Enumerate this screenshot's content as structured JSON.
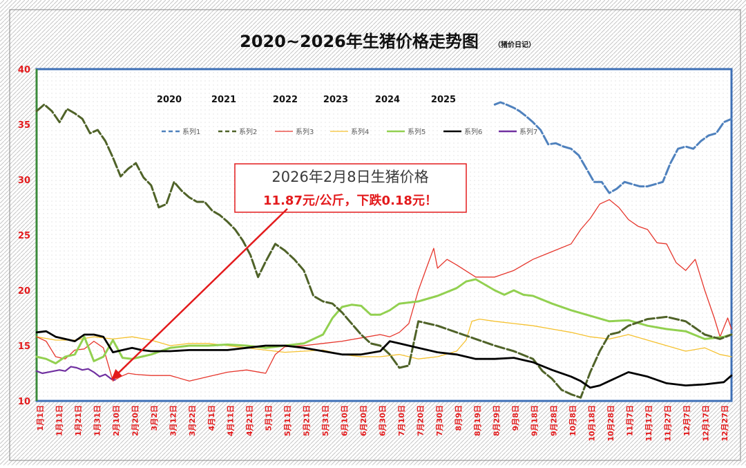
{
  "chart_data": {
    "type": "line",
    "title": "2020~2026年生猪价格走势图",
    "title_note": "（猪价日记）",
    "xlabel": "",
    "ylabel": "",
    "ylim": [
      10,
      40
    ],
    "y_ticks": [
      "10",
      "15",
      "20",
      "25",
      "30",
      "35",
      "40"
    ],
    "x_ticks": [
      "1月1日",
      "1月11日",
      "1月21日",
      "1月31日",
      "2月10日",
      "2月20日",
      "3月2日",
      "3月12日",
      "3月22日",
      "4月1日",
      "4月11日",
      "4月21日",
      "5月1日",
      "5月11日",
      "5月21日",
      "5月31日",
      "6月10日",
      "6月20日",
      "6月30日",
      "7月10日",
      "7月20日",
      "7月30日",
      "8月9日",
      "8月19日",
      "8月29日",
      "9月8日",
      "9月18日",
      "9月28日",
      "10月8日",
      "10月18日",
      "10月28日",
      "11月7日",
      "11月17日",
      "11月27日",
      "12月7日",
      "12月17日",
      "12月27日"
    ],
    "year_labels": [
      "2020",
      "2021",
      "2022",
      "2023",
      "2024",
      "2025"
    ],
    "grid": false,
    "legend_position": "top",
    "series": [
      {
        "name": "系列1",
        "color": "#4f81bd",
        "style": "dashed",
        "x": [
          240,
          243,
          246,
          250,
          253,
          256,
          260,
          264,
          268,
          272,
          276,
          280,
          284,
          288,
          292,
          296,
          300,
          304,
          308,
          312,
          316,
          320,
          324,
          328,
          332,
          336,
          340,
          344,
          348,
          352,
          356,
          360,
          364
        ],
        "values": [
          36.8,
          37,
          36.8,
          36.5,
          36.2,
          35.8,
          35.2,
          34.5,
          33.2,
          33.3,
          33,
          32.8,
          32.2,
          31,
          29.8,
          29.8,
          28.8,
          29.2,
          29.8,
          29.6,
          29.4,
          29.4,
          29.6,
          29.8,
          31.5,
          32.8,
          33,
          32.8,
          33.5,
          34,
          34.2,
          35.2,
          35.5
        ]
      },
      {
        "name": "系列2",
        "color": "#4f6228",
        "style": "dashed",
        "x": [
          0,
          4,
          8,
          12,
          16,
          20,
          24,
          28,
          32,
          36,
          40,
          44,
          48,
          52,
          56,
          60,
          64,
          68,
          72,
          76,
          80,
          84,
          88,
          92,
          96,
          100,
          104,
          108,
          112,
          116,
          120,
          125,
          130,
          135,
          140,
          145,
          150,
          155,
          160,
          165,
          170,
          175,
          180,
          185,
          190,
          195,
          200,
          210,
          220,
          230,
          240,
          250,
          260,
          265,
          270,
          275,
          280,
          285,
          290,
          295,
          300,
          305,
          310,
          320,
          330,
          340,
          350,
          358,
          364
        ],
        "values": [
          36.2,
          36.8,
          36.2,
          35.2,
          36.4,
          36,
          35.5,
          34.2,
          34.5,
          33.5,
          32,
          30.3,
          31,
          31.5,
          30.2,
          29.5,
          27.5,
          27.8,
          29.8,
          29,
          28.4,
          28,
          28,
          27.2,
          26.8,
          26.2,
          25.5,
          24.5,
          23.2,
          21.2,
          22.6,
          24.2,
          23.6,
          22.8,
          21.8,
          19.5,
          19,
          18.8,
          18,
          17,
          16,
          15.2,
          15,
          14.2,
          13,
          13.2,
          17.2,
          16.8,
          16.2,
          15.6,
          15,
          14.5,
          13.8,
          12.7,
          12,
          11,
          10.6,
          10.3,
          12.6,
          14.5,
          16,
          16.2,
          16.8,
          17.4,
          17.6,
          17.2,
          16,
          15.6,
          16
        ]
      },
      {
        "name": "系列3",
        "color": "#e6352b",
        "style": "solid",
        "x": [
          0,
          5,
          10,
          15,
          20,
          25,
          30,
          35,
          40,
          44,
          48,
          52,
          60,
          70,
          80,
          90,
          100,
          110,
          120,
          125,
          130,
          140,
          150,
          160,
          170,
          180,
          185,
          190,
          195,
          200,
          205,
          208,
          210,
          215,
          220,
          230,
          240,
          250,
          260,
          270,
          280,
          285,
          290,
          295,
          300,
          305,
          310,
          315,
          320,
          325,
          330,
          335,
          340,
          345,
          350,
          355,
          358,
          362,
          364
        ],
        "values": [
          15.8,
          15.4,
          14,
          13.8,
          14.6,
          14.7,
          15.4,
          14.8,
          11.8,
          12.2,
          12.5,
          12.4,
          12.3,
          12.3,
          11.8,
          12.2,
          12.6,
          12.8,
          12.5,
          14.2,
          14.9,
          15,
          15.2,
          15.4,
          15.7,
          16,
          15.8,
          16.2,
          17,
          20,
          22.4,
          23.8,
          22,
          22.8,
          22.3,
          21.2,
          21.2,
          21.8,
          22.8,
          23.5,
          24.2,
          25.5,
          26.5,
          27.8,
          28.2,
          27.5,
          26.4,
          25.8,
          25.5,
          24.3,
          24.2,
          22.5,
          21.8,
          22.8,
          20,
          17.5,
          15.8,
          17.5,
          16.5
        ]
      },
      {
        "name": "系列4",
        "color": "#f5c12e",
        "style": "solid",
        "x": [
          0,
          10,
          20,
          30,
          40,
          50,
          60,
          70,
          80,
          90,
          100,
          110,
          120,
          130,
          140,
          150,
          160,
          170,
          180,
          190,
          200,
          210,
          220,
          225,
          228,
          232,
          240,
          250,
          260,
          270,
          280,
          290,
          300,
          310,
          320,
          330,
          340,
          350,
          358,
          364
        ],
        "values": [
          15.8,
          15.5,
          15.5,
          15.8,
          15.6,
          15.8,
          15.5,
          15,
          15.2,
          15.2,
          15,
          14.8,
          14.6,
          14.4,
          14.5,
          14.6,
          14.2,
          14,
          14,
          14.2,
          13.8,
          14,
          14.5,
          15.5,
          17.2,
          17.4,
          17.2,
          17,
          16.8,
          16.5,
          16.2,
          15.8,
          15.6,
          16,
          15.5,
          15,
          14.5,
          14.8,
          14.2,
          14
        ]
      },
      {
        "name": "系列5",
        "color": "#92d050",
        "style": "solid",
        "x": [
          0,
          5,
          10,
          15,
          20,
          25,
          30,
          35,
          40,
          45,
          50,
          55,
          60,
          70,
          80,
          90,
          100,
          110,
          120,
          130,
          140,
          150,
          155,
          160,
          165,
          170,
          175,
          180,
          185,
          190,
          200,
          210,
          220,
          225,
          230,
          235,
          240,
          245,
          250,
          255,
          260,
          270,
          280,
          290,
          300,
          310,
          320,
          330,
          340,
          350,
          360,
          364
        ],
        "values": [
          14,
          13.8,
          13.4,
          14,
          14.2,
          15.8,
          13.6,
          14,
          15.5,
          13.9,
          13.8,
          14,
          14.2,
          14.8,
          15,
          15,
          15.1,
          15,
          14.8,
          15,
          15.2,
          16,
          17.5,
          18.5,
          18.7,
          18.6,
          17.8,
          17.8,
          18.2,
          18.8,
          19,
          19.5,
          20.2,
          20.8,
          21,
          20.5,
          20,
          19.6,
          20,
          19.6,
          19.5,
          18.8,
          18.2,
          17.7,
          17.2,
          17.3,
          16.8,
          16.5,
          16.3,
          15.6,
          15.8,
          16
        ]
      },
      {
        "name": "系列6",
        "color": "#000000",
        "style": "solid",
        "x": [
          0,
          5,
          10,
          15,
          20,
          25,
          30,
          35,
          40,
          45,
          50,
          55,
          60,
          70,
          80,
          90,
          100,
          110,
          120,
          130,
          140,
          150,
          160,
          170,
          180,
          185,
          190,
          200,
          210,
          220,
          230,
          240,
          250,
          260,
          270,
          280,
          285,
          290,
          295,
          300,
          310,
          320,
          330,
          340,
          350,
          360,
          364
        ],
        "values": [
          16.2,
          16.3,
          15.8,
          15.6,
          15.4,
          16,
          16,
          15.8,
          14.4,
          14.6,
          14.8,
          14.6,
          14.5,
          14.5,
          14.6,
          14.6,
          14.6,
          14.8,
          15,
          15,
          14.8,
          14.5,
          14.2,
          14.2,
          14.5,
          15.4,
          15.2,
          14.8,
          14.4,
          14.2,
          13.8,
          13.8,
          13.9,
          13.5,
          12.8,
          12.2,
          11.8,
          11.2,
          11.4,
          11.8,
          12.6,
          12.2,
          11.6,
          11.4,
          11.5,
          11.7,
          12.3
        ]
      },
      {
        "name": "系列7",
        "color": "#7030a0",
        "style": "solid",
        "x": [
          0,
          3,
          6,
          9,
          12,
          15,
          18,
          21,
          24,
          27,
          30,
          33,
          36,
          39,
          41
        ],
        "values": [
          12.7,
          12.5,
          12.6,
          12.7,
          12.8,
          12.7,
          13.1,
          13,
          12.8,
          12.9,
          12.6,
          12.2,
          12.4,
          12,
          11.9
        ]
      }
    ],
    "annotations": [
      {
        "line1": "2026年2月8日生猪价格",
        "line2": "11.87元/公斤，下跌0.18元！",
        "points_to": {
          "x": 39,
          "y": 11.87
        }
      }
    ]
  },
  "colors": {
    "y_tick": "#e31a1c",
    "x_tick": "#e31a1c",
    "plot_border": "#3d6fb6",
    "left_axis": "#3a8a3a",
    "callout": "#e31a1c"
  }
}
